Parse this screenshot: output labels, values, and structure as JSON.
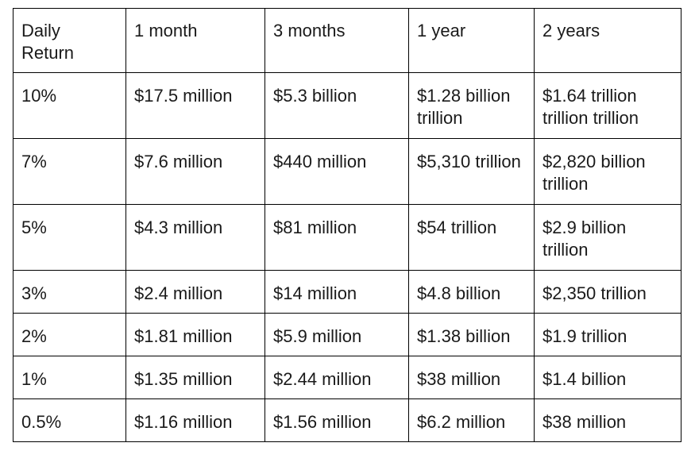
{
  "table": {
    "headers": [
      "Daily Return",
      "1 month",
      "3 months",
      "1 year",
      "2 years"
    ],
    "rows": [
      [
        "10%",
        "$17.5 million",
        "$5.3 billion",
        "$1.28 billion trillion",
        "$1.64 trillion trillion trillion"
      ],
      [
        "7%",
        "$7.6 million",
        "$440 million",
        "$5,310 trillion",
        "$2,820 billion trillion"
      ],
      [
        "5%",
        "$4.3 million",
        "$81 million",
        "$54 trillion",
        "$2.9 billion trillion"
      ],
      [
        "3%",
        "$2.4 million",
        "$14 million",
        "$4.8 billion",
        "$2,350 trillion"
      ],
      [
        "2%",
        "$1.81 million",
        "$5.9 million",
        "$1.38 billion",
        "$1.9 trillion"
      ],
      [
        "1%",
        "$1.35 million",
        "$2.44 million",
        "$38 million",
        "$1.4 billion"
      ],
      [
        "0.5%",
        "$1.16 million",
        "$1.56 million",
        "$6.2 million",
        "$38 million"
      ]
    ]
  }
}
